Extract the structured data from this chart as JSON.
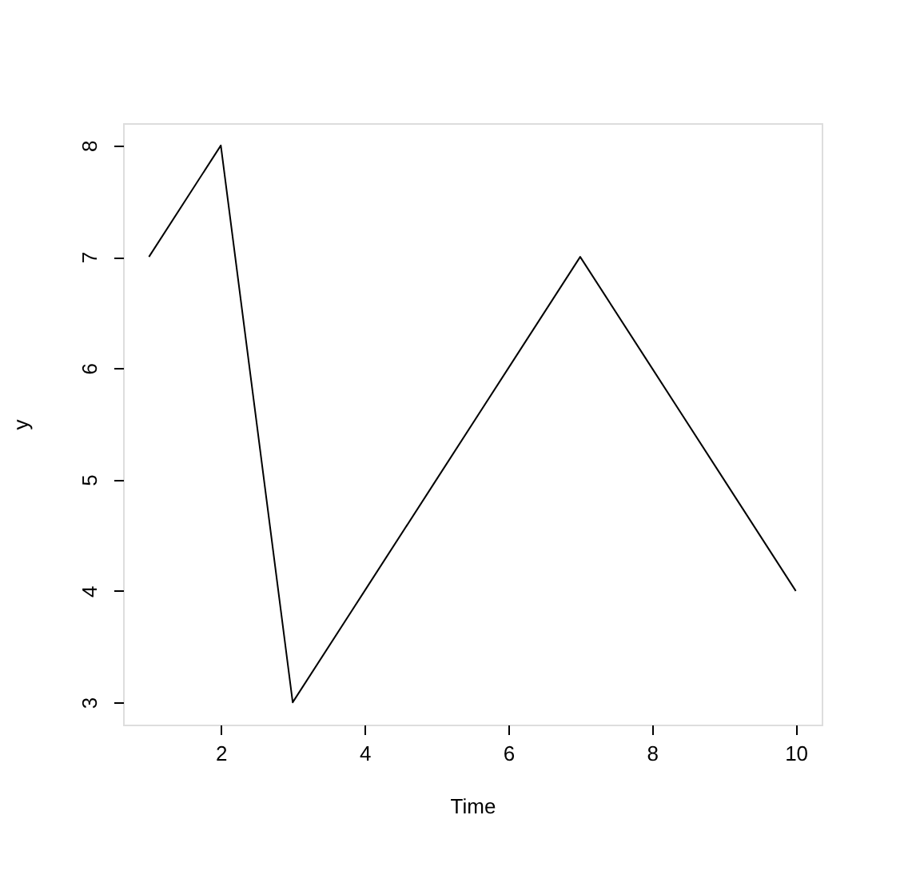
{
  "chart_data": {
    "type": "line",
    "xlabel": "Time",
    "ylabel": "y",
    "x": [
      1,
      2,
      3,
      4,
      5,
      6,
      7,
      8,
      9,
      10
    ],
    "series": [
      {
        "color": "#000000",
        "values": [
          7,
          8,
          3,
          4,
          5,
          6,
          7,
          6,
          5,
          4
        ]
      }
    ],
    "xlim": [
      0.64,
      10.36
    ],
    "ylim": [
      2.8,
      8.2
    ],
    "xticks": [
      2,
      4,
      6,
      8,
      10
    ],
    "yticks": [
      3,
      4,
      5,
      6,
      7,
      8
    ],
    "grid": false,
    "legend": false,
    "marker": "none",
    "line_style": "solid"
  }
}
